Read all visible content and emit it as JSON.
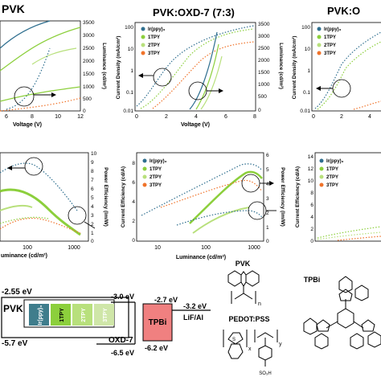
{
  "panel_titles": {
    "a": "PVK",
    "b": "PVK:OXD-7 (7:3)",
    "c": "PVK:O"
  },
  "colors": {
    "irppy": "#2f6f8f",
    "tpy1": "#8ccf3c",
    "tpy2": "#b8e07c",
    "tpy3": "#f0732a",
    "tpbi": "#f08080"
  },
  "legend": [
    "Ir(ppy)₃",
    "1TPY",
    "2TPY",
    "3TPY"
  ],
  "axes": {
    "voltage": "Voltage (V)",
    "current_density": "Current Density (mA/cm²)",
    "luminance_cdm2": "Luminance (cd/m²)",
    "luminance_short": "uminance (cd/m²)",
    "luminance_xb": "Luminance (cd/m²)",
    "power_efficiency": "Power Efficiency (lm/W)",
    "current_efficiency": "Current Efficiency (cd/A)"
  },
  "chart_data": [
    {
      "panel": "PVK",
      "type": "line",
      "xlabel": "Voltage (V)",
      "x_ticks": [
        6,
        8,
        10,
        12
      ],
      "y2label": "Luminance (cd/m²)",
      "y2_ticks": [
        0,
        500,
        1000,
        1500,
        2000,
        2500,
        3000,
        3500
      ]
    },
    {
      "panel": "PVK:OXD-7 (7:3)",
      "type": "line",
      "xlabel": "Voltage (V)",
      "x_ticks": [
        0,
        2,
        4,
        6,
        8
      ],
      "ylabel": "Current Density (mA/cm²)",
      "y_ticks": [
        "0.01",
        "0.1",
        "1",
        "10",
        "100"
      ],
      "y2label": "Luminance (cd/m²)",
      "y2_ticks": [
        0,
        500,
        1000,
        1500,
        2000,
        2500,
        3000,
        3500
      ],
      "legend": [
        "Ir(ppy)₃",
        "1TPY",
        "2TPY",
        "3TPY"
      ]
    },
    {
      "panel": "PVK:O",
      "type": "line",
      "x_ticks": [
        0,
        2,
        4
      ],
      "ylabel": "Current Density (mA/cm²)",
      "y_ticks": [
        "0.01",
        "0.1",
        "1",
        "10",
        "100"
      ],
      "legend": [
        "Ir(ppy)₃",
        "1TPY",
        "2TPY",
        "3TPY"
      ]
    },
    {
      "panel": "PVK",
      "type": "line",
      "xlabel": "uminance (cd/m²)",
      "x_ticks": [
        "100",
        "1000"
      ],
      "y2label": "Power Efficiency (lm/W)",
      "y2_ticks": [
        0,
        1,
        2,
        3,
        4,
        5,
        6,
        7,
        8,
        9,
        10
      ]
    },
    {
      "panel": "PVK:OXD-7 (7:3)",
      "type": "line",
      "xlabel": "Luminance (cd/m²)",
      "x_ticks": [
        "10",
        "100",
        "1000"
      ],
      "ylabel": "Current Efficiency (cd/A)",
      "y_ticks": [
        0,
        2,
        4,
        6,
        8
      ],
      "y2label": "Power Efficiency (lm/W)",
      "y2_ticks": [
        0,
        1,
        2,
        3,
        4,
        5,
        6
      ],
      "legend": [
        "Ir(ppy)₃",
        "1TPY",
        "2TPY",
        "3TPY"
      ]
    },
    {
      "panel": "PVK:O",
      "type": "line",
      "ylabel": "Current Efficiency (cd/A)",
      "y_ticks": [
        0,
        2,
        4,
        6,
        8,
        10,
        12,
        14
      ],
      "legend": [
        "Ir(ppy)₃",
        "1TPY",
        "2TPY",
        "3TPY"
      ]
    }
  ],
  "energy": {
    "e1": "-2.55 eV",
    "e2": "-5.7 eV",
    "pvk": "PVK",
    "dopants": [
      "Ir(ppy)₃",
      "1TPY",
      "2TPY",
      "3TPY"
    ],
    "e3": "-3.0 eV",
    "e4": "-2.7 eV",
    "e5": "-3.2 eV",
    "cathode": "LiF/Al",
    "oxd": "OXD-7",
    "tpbi": "TPBi",
    "e6": "-6.5 eV",
    "e7": "-6.2 eV"
  },
  "structures": {
    "pvk": "PVK",
    "pedot": "PEDOT:PSS",
    "tpbi": "TPBi",
    "n": "n",
    "x": "x",
    "y": "y",
    "s": "S",
    "so3h": "SO₃H"
  }
}
